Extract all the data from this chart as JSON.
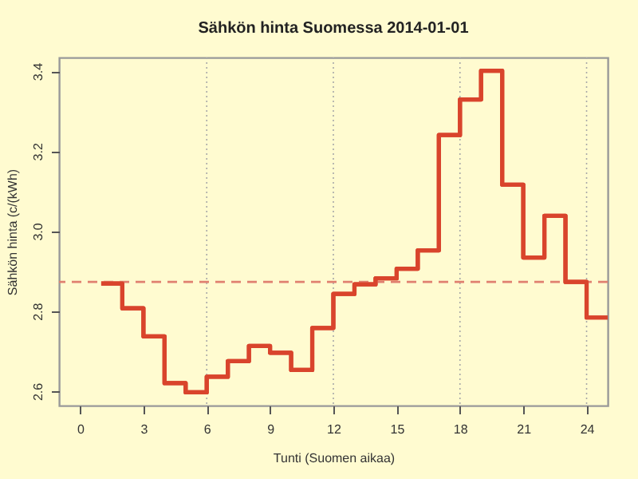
{
  "chart_data": {
    "type": "step",
    "title": "Sähkön hinta Suomessa 2014-01-01",
    "xlabel": "Tunti (Suomen aikaa)",
    "ylabel": "Sähkön hinta (c/(kWh)",
    "x": [
      1,
      2,
      3,
      4,
      5,
      6,
      7,
      8,
      9,
      10,
      11,
      12,
      13,
      14,
      15,
      16,
      17,
      18,
      19,
      20,
      21,
      22,
      23,
      24,
      25
    ],
    "series": [
      {
        "color": "#d9442c",
        "values": [
          2.869,
          2.807,
          2.737,
          2.62,
          2.597,
          2.636,
          2.675,
          2.713,
          2.696,
          2.653,
          2.758,
          2.843,
          2.867,
          2.882,
          2.906,
          2.952,
          3.24,
          3.329,
          3.401,
          3.116,
          2.934,
          3.038,
          2.873,
          2.784,
          2.784
        ]
      }
    ],
    "xlim": [
      -1,
      25
    ],
    "xticks": [
      0,
      3,
      6,
      9,
      12,
      15,
      18,
      21,
      24
    ],
    "ylim": [
      2.564,
      3.434
    ],
    "yticks": [
      2.6,
      2.8,
      {
        "value": 3.0,
        "label": "3.0"
      },
      3.2,
      3.4
    ],
    "ref_lines": [
      {
        "axis": "x",
        "value": 6,
        "color": "#a8a8a8",
        "line_style": "dotted"
      },
      {
        "axis": "x",
        "value": 12,
        "color": "#a8a8a8",
        "line_style": "dotted"
      },
      {
        "axis": "x",
        "value": 18,
        "color": "#a8a8a8",
        "line_style": "dotted"
      },
      {
        "axis": "x",
        "value": 24,
        "color": "#a8a8a8",
        "line_style": "dotted"
      },
      {
        "axis": "y",
        "value": 2.873,
        "color": "#e08070",
        "line_style": "dashed"
      }
    ],
    "grid": false
  }
}
